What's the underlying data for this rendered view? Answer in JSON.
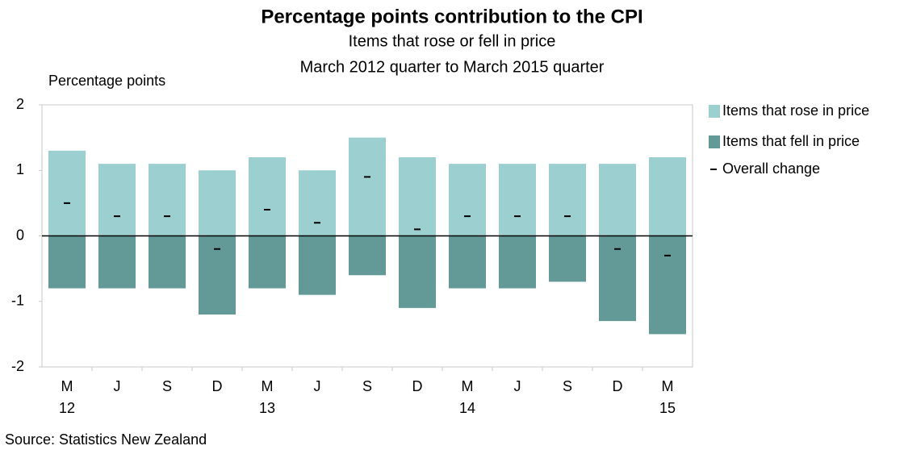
{
  "chart_data": {
    "type": "bar",
    "title": "Percentage points contribution to the CPI",
    "subtitle": "Items that rose or fell in price",
    "subtitle2": "March 2012 quarter to March 2015 quarter",
    "y_label": "Percentage points",
    "source": "Source: Statistics New Zealand",
    "categories": [
      "M",
      "J",
      "S",
      "D",
      "M",
      "J",
      "S",
      "D",
      "M",
      "J",
      "S",
      "D",
      "M"
    ],
    "category_years": [
      "12",
      null,
      null,
      null,
      "13",
      null,
      null,
      null,
      "14",
      null,
      null,
      null,
      "15"
    ],
    "series": [
      {
        "name": "Items that rose in price",
        "color": "#9ccfd0",
        "mark": "bar",
        "values": [
          1.3,
          1.1,
          1.1,
          1.0,
          1.2,
          1.0,
          1.5,
          1.2,
          1.1,
          1.1,
          1.1,
          1.1,
          1.2
        ]
      },
      {
        "name": "Items that fell in price",
        "color": "#639a98",
        "mark": "bar",
        "values": [
          -0.8,
          -0.8,
          -0.8,
          -1.2,
          -0.8,
          -0.9,
          -0.6,
          -1.1,
          -0.8,
          -0.8,
          -0.7,
          -1.3,
          -1.5
        ]
      },
      {
        "name": "Overall change",
        "color": "#000000",
        "mark": "dash",
        "values": [
          0.5,
          0.3,
          0.3,
          -0.2,
          0.4,
          0.2,
          0.9,
          0.1,
          0.3,
          0.3,
          0.3,
          -0.2,
          -0.3
        ]
      }
    ],
    "ylim": [
      -2,
      2
    ],
    "yticks": [
      2,
      1,
      0,
      -1,
      -2
    ],
    "legend": "right"
  }
}
